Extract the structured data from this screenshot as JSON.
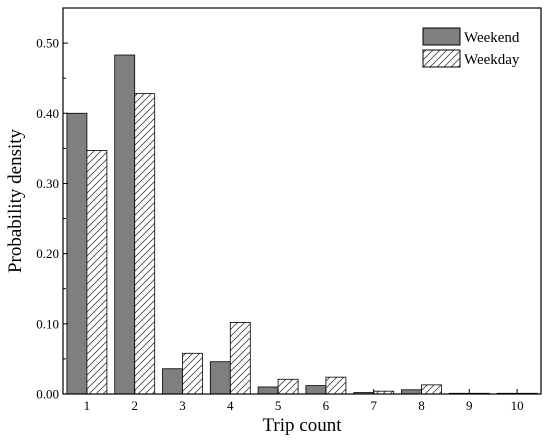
{
  "chart_data": {
    "type": "bar",
    "xlabel": "Trip count",
    "ylabel": "Probability density",
    "categories": [
      "1",
      "2",
      "3",
      "4",
      "5",
      "6",
      "7",
      "8",
      "9",
      "10"
    ],
    "ylim": [
      0,
      0.55
    ],
    "yticks": [
      "0.00",
      "0.10",
      "0.20",
      "0.30",
      "0.40",
      "0.50"
    ],
    "grid": false,
    "legend_position": "top-right",
    "series": [
      {
        "name": "Weekend",
        "fill": "solid-gray",
        "color": "#7f7f7f",
        "values": [
          0.4,
          0.483,
          0.036,
          0.046,
          0.01,
          0.012,
          0.002,
          0.006,
          0.001,
          0.001
        ]
      },
      {
        "name": "Weekday",
        "fill": "diagonal-hatch",
        "color": "#ffffff",
        "values": [
          0.347,
          0.428,
          0.058,
          0.102,
          0.021,
          0.024,
          0.004,
          0.013,
          0.001,
          0.001
        ]
      }
    ]
  }
}
